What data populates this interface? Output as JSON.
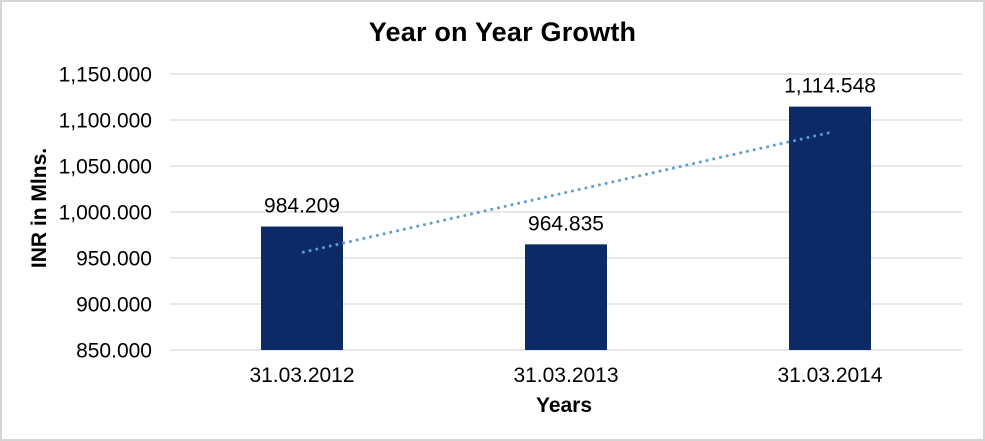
{
  "chart_data": {
    "type": "bar",
    "title": "Year on Year Growth",
    "xlabel": "Years",
    "ylabel": "INR  in Mlns.",
    "categories": [
      "31.03.2012",
      "31.03.2013",
      "31.03.2014"
    ],
    "values": [
      984.209,
      964.835,
      1114.548
    ],
    "data_labels": [
      "984.209",
      "964.835",
      "1,114.548"
    ],
    "y_ticks": [
      850,
      900,
      950,
      1000,
      1050,
      1100,
      1150
    ],
    "y_tick_labels": [
      "850.000",
      "900.000",
      "950.000",
      "1,000.000",
      "1,050.000",
      "1,100.000",
      "1,150.000"
    ],
    "ylim": [
      850,
      1150
    ],
    "grid": true,
    "legend": "none",
    "trendline": {
      "type": "linear",
      "style": "dotted"
    }
  },
  "colors": {
    "bar_fill": "#0b2a66",
    "trendline": "#5b9bd5",
    "gridline": "#d9d9d9",
    "text": "#000000",
    "frame_border": "#d5d5d5",
    "background": "#ffffff"
  }
}
